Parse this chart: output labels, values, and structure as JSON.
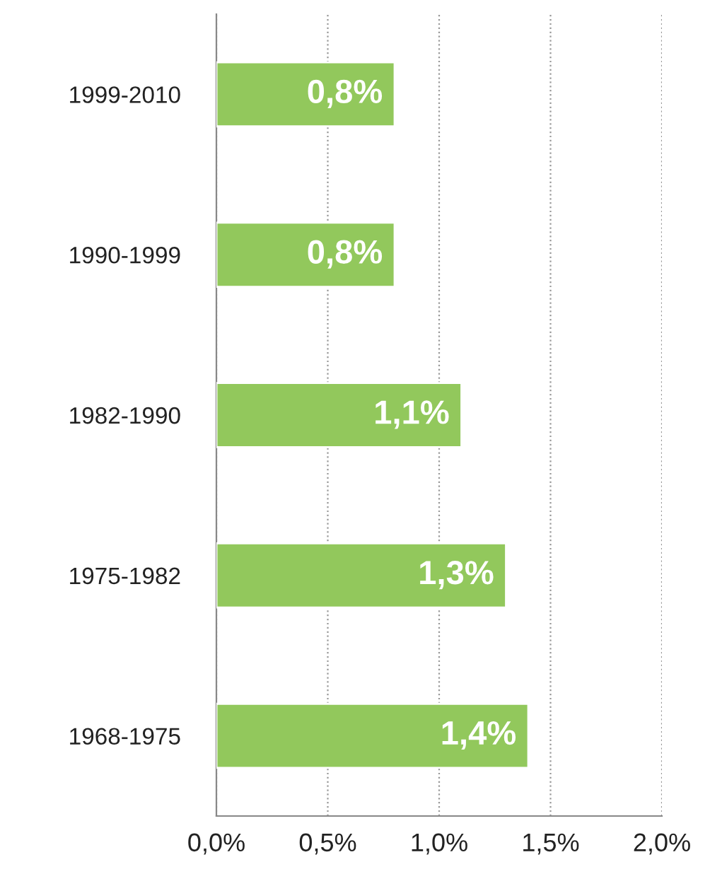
{
  "chart_data": {
    "type": "bar",
    "orientation": "horizontal",
    "categories": [
      "1999-2010",
      "1990-1999",
      "1982-1990",
      "1975-1982",
      "1968-1975"
    ],
    "values": [
      0.8,
      0.8,
      1.1,
      1.3,
      1.4
    ],
    "value_labels": [
      "0,8%",
      "0,8%",
      "1,1%",
      "1,3%",
      "1,4%"
    ],
    "color": "#92c85c",
    "xlim": [
      0,
      2
    ],
    "xticks": [
      {
        "value": 0,
        "label": "0,0%"
      },
      {
        "value": 0.5,
        "label": "0,5%"
      },
      {
        "value": 1,
        "label": "1,0%"
      },
      {
        "value": 1.5,
        "label": "1,5%"
      },
      {
        "value": 2,
        "label": "2,0%"
      }
    ],
    "grid": "x"
  }
}
